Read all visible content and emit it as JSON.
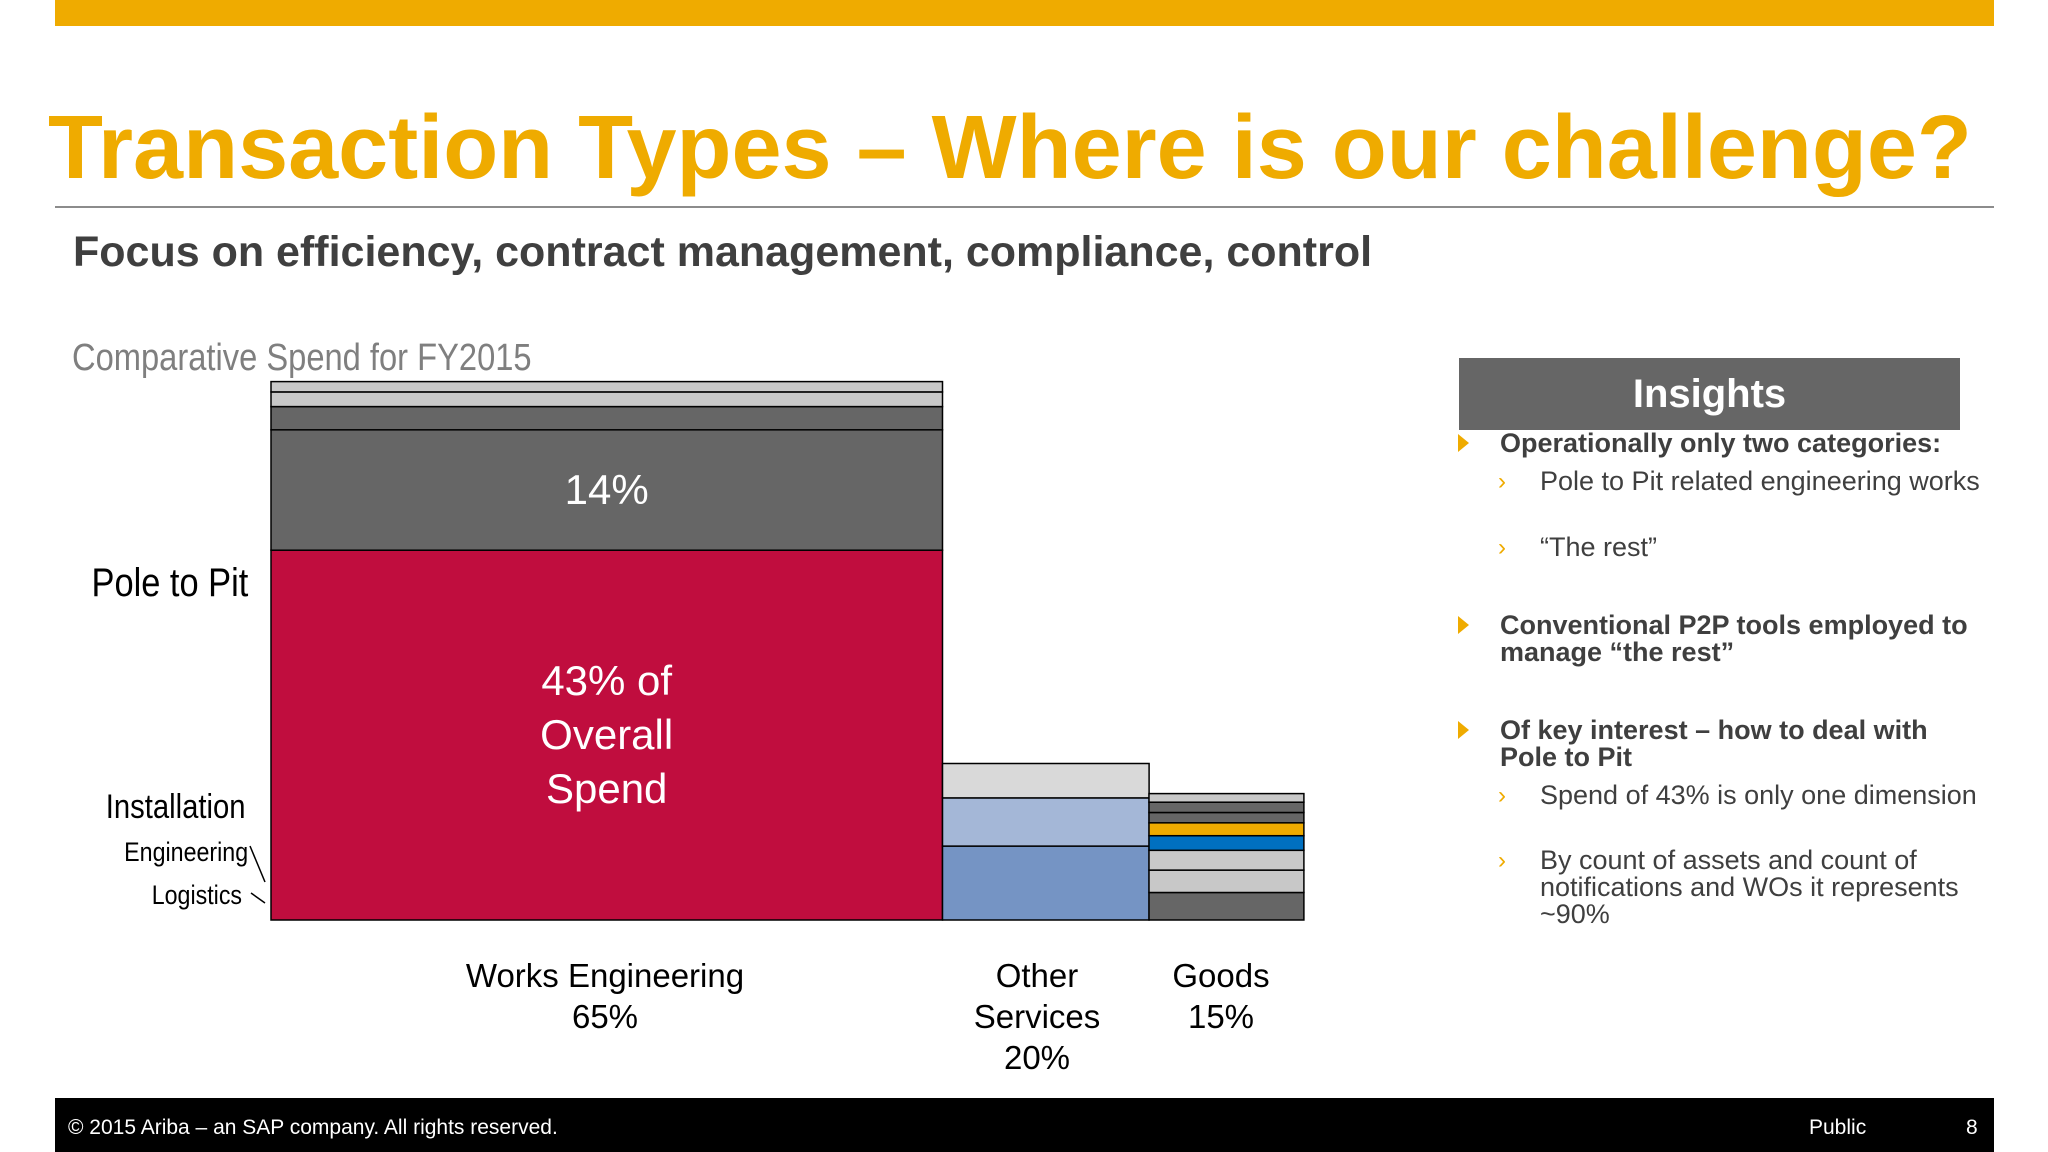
{
  "slide": {
    "title": "Transaction Types – Where is our challenge?",
    "subtitle": "Focus on efficiency, contract management, compliance, control",
    "chart_caption": "Comparative Spend for FY2015",
    "page_number": "8",
    "classification": "Public",
    "copyright": "© 2015 Ariba – an SAP company. All rights reserved."
  },
  "row_labels": {
    "pole_to_pit": "Pole to Pit",
    "installation": "Installation",
    "engineering": "Engineering",
    "logistics": "Logistics"
  },
  "chart_data": {
    "type": "bar",
    "subtype": "marimekko",
    "title": "Comparative Spend for FY2015",
    "columns": [
      {
        "label": "Works Engineering",
        "share_label": "65%",
        "width_pct": 65,
        "segments": [
          {
            "name": "Pole to Pit",
            "value": 43,
            "color": "#c00d3e",
            "label_lines": [
              "43% of",
              "Overall",
              "Spend"
            ]
          },
          {
            "name": "Installation",
            "value": 14,
            "color": "#666666",
            "label_lines": [
              "14%"
            ]
          },
          {
            "name": "Engineering",
            "value": 2.7,
            "color": "#666666",
            "label_lines": []
          },
          {
            "name": "Logistics",
            "value": 1.7,
            "color": "#c8c8c8",
            "label_lines": []
          },
          {
            "name": "",
            "value": 1.2,
            "color": "#c8c8c8",
            "label_lines": []
          }
        ]
      },
      {
        "label": "Other Services",
        "share_label": "20%",
        "width_pct": 20,
        "segments": [
          {
            "name": "",
            "value": 8.6,
            "color": "#7594c4",
            "label_lines": []
          },
          {
            "name": "",
            "value": 5.6,
            "color": "#a4b7d7",
            "label_lines": []
          },
          {
            "name": "",
            "value": 4.0,
            "color": "#d9d9d9",
            "label_lines": []
          }
        ]
      },
      {
        "label": "Goods",
        "share_label": "15%",
        "width_pct": 15,
        "segments": [
          {
            "name": "",
            "value": 3.2,
            "color": "#666666",
            "label_lines": []
          },
          {
            "name": "",
            "value": 2.6,
            "color": "#c8c8c8",
            "label_lines": []
          },
          {
            "name": "",
            "value": 2.3,
            "color": "#c8c8c8",
            "label_lines": []
          },
          {
            "name": "",
            "value": 1.7,
            "color": "#0070c0",
            "label_lines": []
          },
          {
            "name": "",
            "value": 1.5,
            "color": "#efab00",
            "label_lines": []
          },
          {
            "name": "",
            "value": 1.2,
            "color": "#666666",
            "label_lines": []
          },
          {
            "name": "",
            "value": 1.2,
            "color": "#666666",
            "label_lines": []
          },
          {
            "name": "",
            "value": 1.0,
            "color": "#c8c8c8",
            "label_lines": []
          }
        ]
      }
    ]
  },
  "insights": {
    "header": "Insights",
    "items": [
      {
        "text": "Operationally only two categories:",
        "subs": [
          "Pole to Pit related engineering works",
          "“The rest”"
        ]
      },
      {
        "text": "Conventional P2P tools employed to manage “the rest”",
        "subs": []
      },
      {
        "text": "Of key interest – how to deal with Pole to Pit",
        "subs": [
          "Spend of 43% is only one dimension",
          "By count of assets and count of notifications and WOs it represents ~90%"
        ]
      }
    ]
  },
  "colors": {
    "accent": "#efab00",
    "pole_to_pit": "#c00d3e",
    "header_gray": "#666666",
    "footer": "#000000"
  }
}
